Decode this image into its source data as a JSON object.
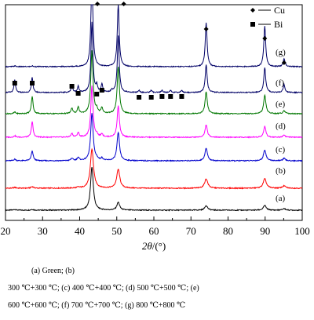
{
  "chart_data": {
    "type": "line",
    "xlabel_symbol": "2θ",
    "xlabel_unit": "/(°)",
    "xlim": [
      20,
      100
    ],
    "xticks": [
      20,
      30,
      40,
      50,
      60,
      70,
      80,
      90,
      100
    ],
    "legend": [
      {
        "marker": "diamond",
        "label": "Cu"
      },
      {
        "marker": "square",
        "label": "Bi"
      }
    ],
    "legend_position": "top-right",
    "peaks_cu": [
      43.3,
      50.4,
      74.1,
      89.9,
      95.1
    ],
    "peaks_bi": [
      22.5,
      27.2,
      37.9,
      39.6,
      44.6,
      46.0,
      48.7,
      56.0,
      59.3,
      62.2,
      64.5,
      67.5
    ],
    "series": [
      {
        "label": "(a)",
        "color": "#000000",
        "cu_heights": [
          55,
          10,
          6,
          6,
          2
        ],
        "bi_heights": [
          1,
          1,
          0,
          0,
          0,
          0,
          0,
          0,
          0,
          0,
          0,
          0
        ]
      },
      {
        "label": "(b)",
        "color": "#ff0000",
        "cu_heights": [
          50,
          24,
          12,
          12,
          3
        ],
        "bi_heights": [
          1,
          2,
          0,
          1,
          0,
          0,
          0,
          0,
          0,
          0,
          0,
          0
        ]
      },
      {
        "label": "(c)",
        "color": "#0000cc",
        "cu_heights": [
          60,
          36,
          16,
          14,
          3
        ],
        "bi_heights": [
          2,
          12,
          3,
          4,
          2,
          3,
          0,
          0,
          0,
          0,
          0,
          0
        ]
      },
      {
        "label": "(d)",
        "color": "#ff00ff",
        "cu_heights": [
          65,
          40,
          16,
          14,
          3
        ],
        "bi_heights": [
          2,
          20,
          5,
          6,
          3,
          4,
          0,
          0,
          0,
          0,
          0,
          0
        ]
      },
      {
        "label": "(e)",
        "color": "#007700",
        "cu_heights": [
          80,
          60,
          28,
          24,
          4
        ],
        "bi_heights": [
          2,
          22,
          7,
          8,
          5,
          7,
          0,
          0,
          0,
          0,
          0,
          0
        ]
      },
      {
        "label": "(f)",
        "color": "#000066",
        "cu_heights": [
          90,
          72,
          36,
          32,
          10
        ],
        "bi_heights": [
          16,
          20,
          10,
          8,
          8,
          10,
          3,
          3,
          3,
          3,
          3,
          3
        ]
      },
      {
        "label": "(g)",
        "color": "#000066",
        "cu_heights": [
          120,
          80,
          56,
          52,
          10
        ],
        "bi_heights": [
          1,
          1,
          0,
          0,
          0,
          0,
          0,
          0,
          0,
          0,
          0,
          0
        ]
      }
    ]
  },
  "caption": {
    "line1": "(a)    Green;    (b)",
    "line2": "300 ℃+300 ℃; (c)  400 ℃+400 ℃; (d)  500 ℃+500 ℃; (e)",
    "line3": "600 ℃+600 ℃; (f) 700 ℃+700 ℃; (g) 800 ℃+800 ℃"
  }
}
